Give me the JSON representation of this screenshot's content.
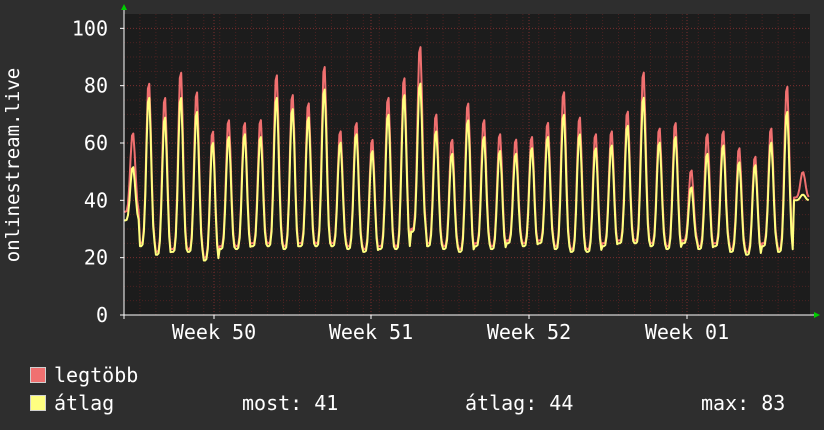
{
  "chart_data": {
    "type": "line",
    "ylabel": "onlinestream.live",
    "ylim": [
      0,
      105
    ],
    "yticks": [
      0,
      20,
      40,
      60,
      80,
      100
    ],
    "xticks": [
      "Week 50",
      "Week 51",
      "Week 52",
      "Week 01"
    ],
    "grid": true,
    "days": 43,
    "series": [
      {
        "name": "legtöbb",
        "color": "#f07070",
        "daily_peaks": [
          64,
          82,
          77,
          86,
          79,
          65,
          69,
          68,
          69,
          85,
          78,
          75,
          88,
          65,
          68,
          62,
          77,
          84,
          95,
          71,
          62,
          75,
          69,
          64,
          62,
          63,
          68,
          79,
          70,
          64,
          65,
          72,
          86,
          66,
          68,
          51,
          64,
          65,
          59,
          56,
          66,
          81,
          50
        ],
        "daily_mins": [
          36,
          25,
          22,
          23,
          23,
          20,
          24,
          24,
          25,
          25,
          24,
          25,
          25,
          25,
          24,
          23,
          24,
          24,
          30,
          25,
          24,
          23,
          25,
          24,
          26,
          25,
          26,
          24,
          23,
          23,
          25,
          26,
          26,
          25,
          24,
          26,
          24,
          25,
          23,
          22,
          25,
          23,
          41
        ]
      },
      {
        "name": "átlag",
        "color": "#ffff80",
        "daily_peaks": [
          52,
          77,
          70,
          77,
          72,
          61,
          63,
          64,
          63,
          77,
          73,
          70,
          80,
          61,
          64,
          58,
          71,
          78,
          82,
          65,
          57,
          69,
          63,
          58,
          57,
          59,
          63,
          71,
          64,
          59,
          60,
          67,
          77,
          61,
          63,
          45,
          57,
          60,
          54,
          53,
          61,
          72,
          42
        ],
        "daily_mins": [
          33,
          24,
          21,
          22,
          22,
          19,
          23,
          23,
          24,
          24,
          23,
          24,
          24,
          24,
          23,
          22,
          23,
          23,
          29,
          24,
          23,
          22,
          24,
          23,
          25,
          24,
          25,
          23,
          22,
          22,
          24,
          25,
          25,
          24,
          23,
          25,
          23,
          24,
          22,
          21,
          24,
          22,
          40
        ]
      }
    ]
  },
  "legend": {
    "max_label": "legtöbb",
    "avg_label": "átlag",
    "max_color": "#f07070",
    "avg_color": "#ffff80"
  },
  "stats": {
    "now": "most: 41",
    "avg": "átlag: 44",
    "max": "max: 83"
  }
}
